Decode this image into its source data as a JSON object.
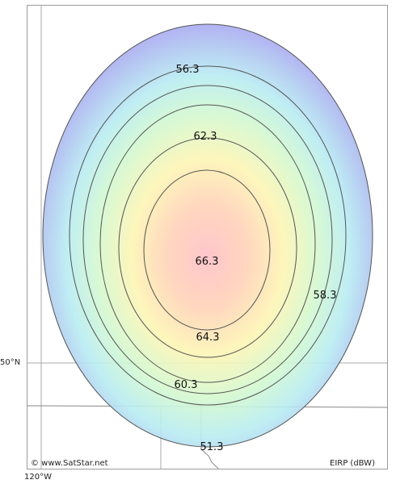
{
  "map": {
    "colors": {
      "frame_border": "#9a9a9a",
      "grid_line": "#aaaaaa",
      "border_line": "#888888",
      "contour_line": "#555555",
      "center_color": "#ffbfc6",
      "edge_color": "#a9aaf0"
    },
    "grid": {
      "lat_label": "50°N",
      "lon_label": "120°W"
    },
    "credit": "© www.SatStar.net",
    "units_label": "EIRP (dBW)",
    "contours": [
      {
        "value": "51.3"
      },
      {
        "value": "56.3"
      },
      {
        "value": "58.3"
      },
      {
        "value": "60.3"
      },
      {
        "value": "62.3"
      },
      {
        "value": "64.3"
      },
      {
        "value": "66.3"
      }
    ]
  }
}
